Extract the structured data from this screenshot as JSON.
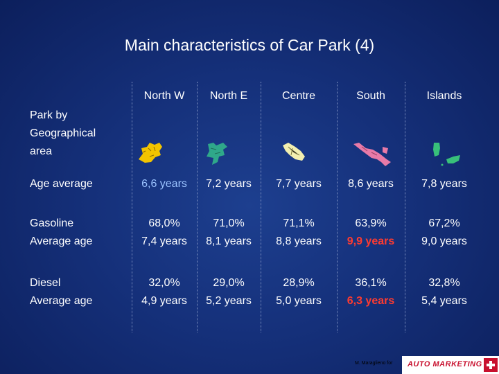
{
  "title": "Main characteristics of Car Park (4)",
  "columns": [
    "North W",
    "North E",
    "Centre",
    "South",
    "Islands"
  ],
  "row_labels": {
    "geo": [
      "Park by",
      "Geographical",
      "area"
    ],
    "age": "Age average",
    "gasoline": [
      "Gasoline",
      "Average age"
    ],
    "diesel": [
      "Diesel",
      "Average age"
    ]
  },
  "age_values": [
    "6,6 years",
    "7,2 years",
    "7,7 years",
    "8,6 years",
    "7,8 years"
  ],
  "gasoline_share": [
    "68,0%",
    "71,0%",
    "71,1%",
    "63,9%",
    "67,2%"
  ],
  "gasoline_age": [
    "7,4 years",
    "8,1 years",
    "8,8 years",
    "9,9 years",
    "9,0 years"
  ],
  "diesel_share": [
    "32,0%",
    "29,0%",
    "28,9%",
    "36,1%",
    "32,8%"
  ],
  "diesel_age": [
    "4,9 years",
    "5,2 years",
    "5,0 years",
    "6,3 years",
    "5,4 years"
  ],
  "map_icons": [
    "north-west-map-icon",
    "north-east-map-icon",
    "centre-map-icon",
    "south-map-icon",
    "islands-map-icon"
  ],
  "colors": {
    "background": "#15307a",
    "highlight_blue": "#9bc3ff",
    "highlight_red": "#ff3b30",
    "map_north_w": "#f2c400",
    "map_north_e": "#2fa88a",
    "map_centre": "#f3efb0",
    "map_south": "#e87aa8",
    "map_islands": "#38c07a"
  },
  "footer": {
    "author": "M. Maraglieno for",
    "logo": "AUTO MARKETING"
  }
}
